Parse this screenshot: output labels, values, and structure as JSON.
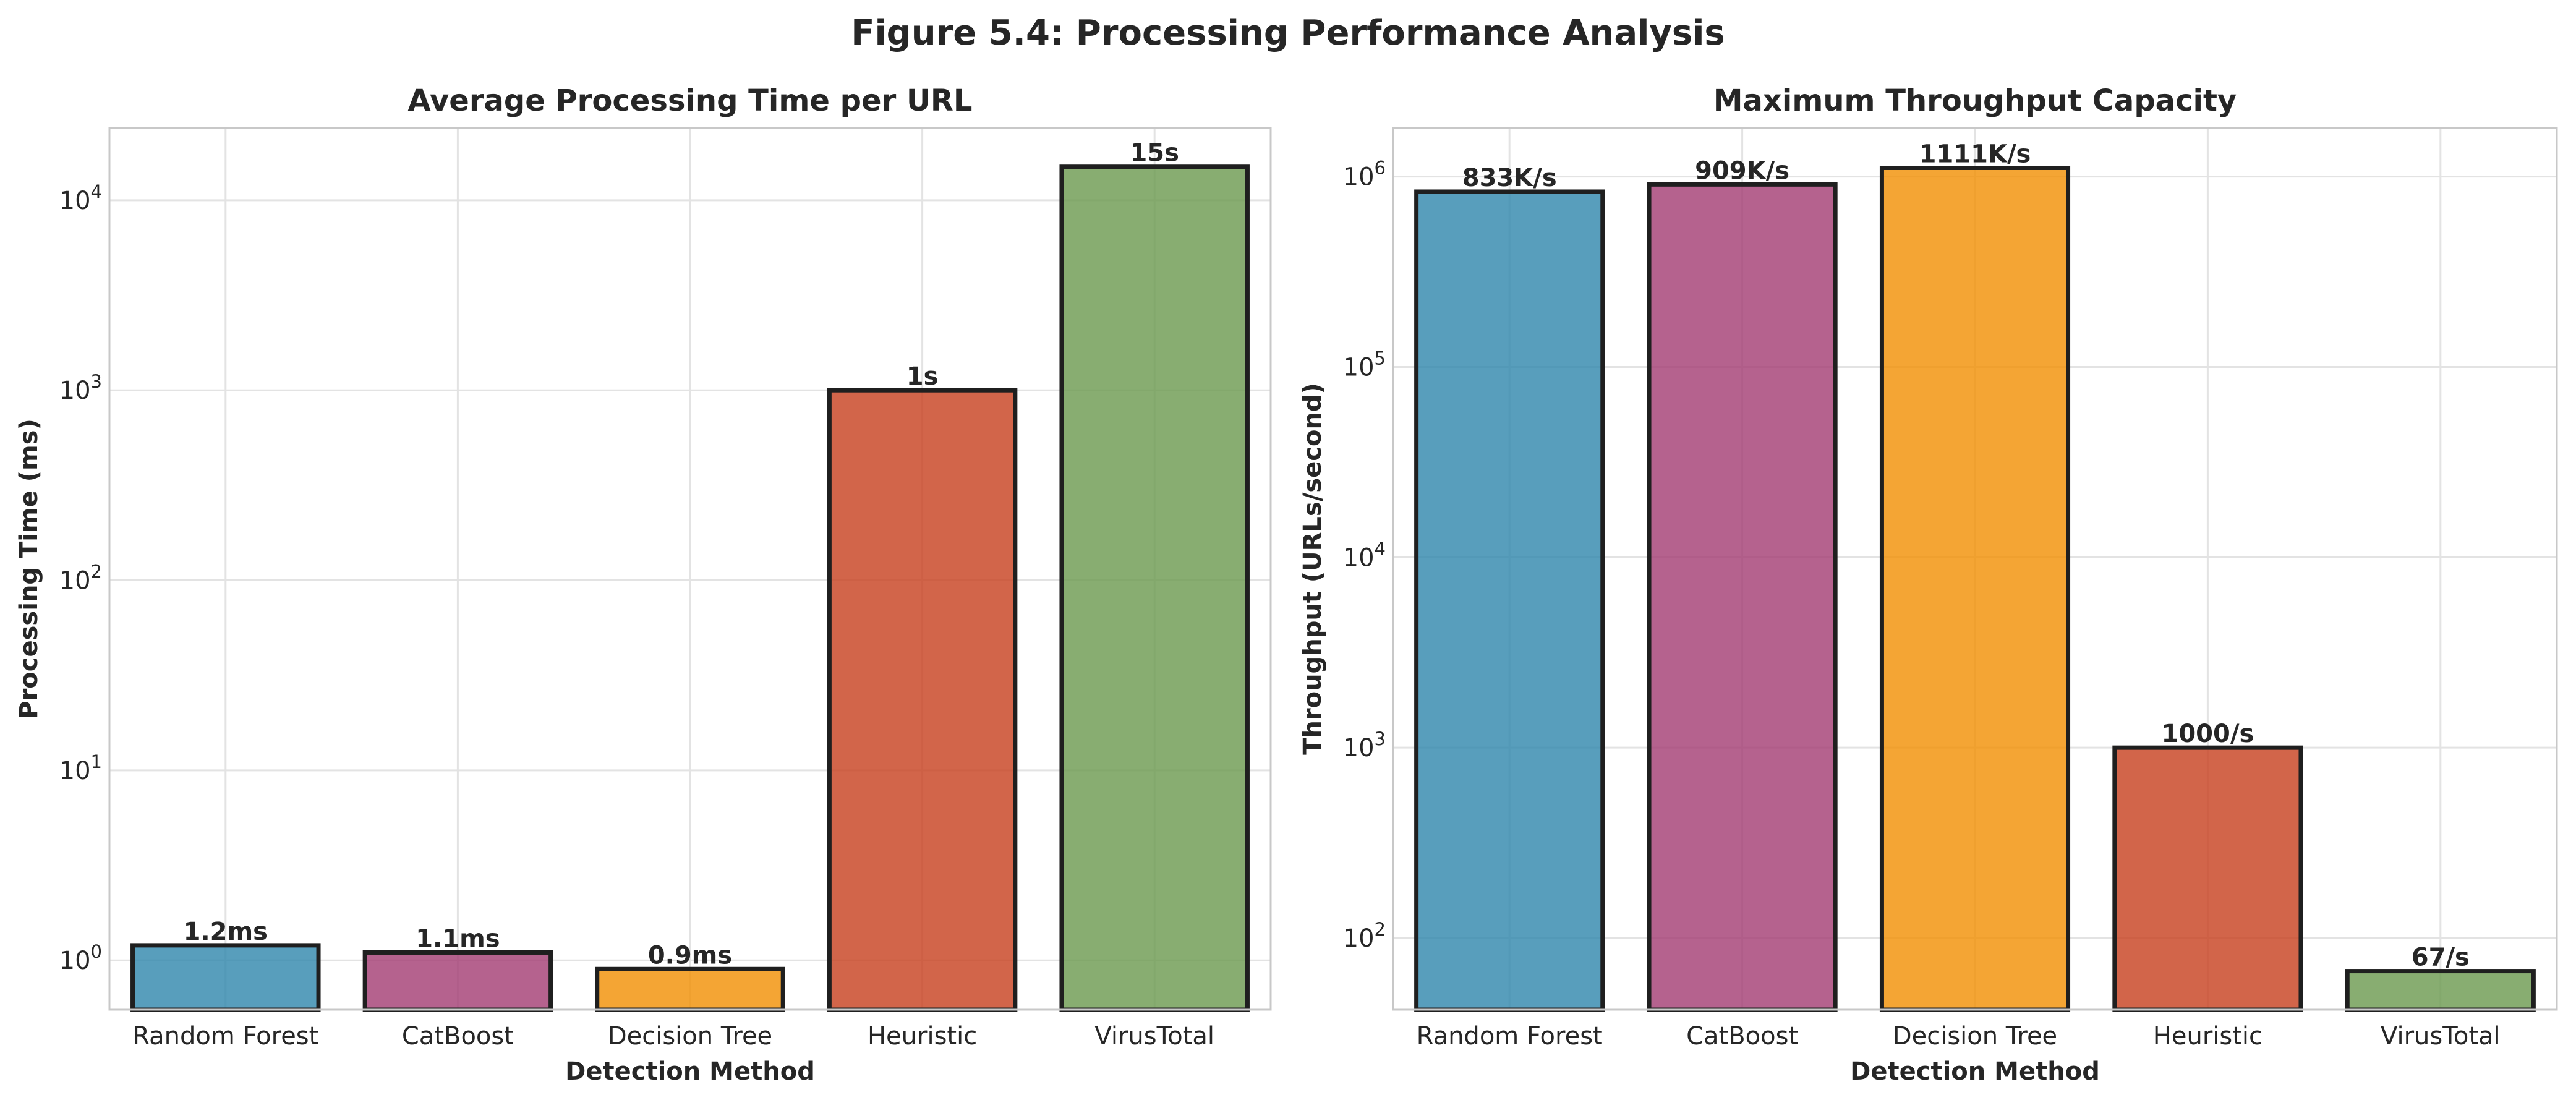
{
  "figure_title": "Figure 5.4: Processing Performance Analysis",
  "chart_data": [
    {
      "type": "bar",
      "title": "Average Processing Time per URL",
      "xlabel": "Detection Method",
      "ylabel": "Processing Time (ms)",
      "yscale": "log",
      "ylim": [
        0.55,
        24000
      ],
      "yticks": [
        1,
        10,
        100,
        1000,
        10000
      ],
      "ytick_labels": [
        {
          "base": "10",
          "exp": "0"
        },
        {
          "base": "10",
          "exp": "1"
        },
        {
          "base": "10",
          "exp": "2"
        },
        {
          "base": "10",
          "exp": "3"
        },
        {
          "base": "10",
          "exp": "4"
        }
      ],
      "grid": true,
      "categories": [
        "Random Forest",
        "CatBoost",
        "Decision Tree",
        "Heuristic",
        "VirusTotal"
      ],
      "values": [
        1.2,
        1.1,
        0.9,
        1000,
        15000
      ],
      "data_labels": [
        "1.2ms",
        "1.1ms",
        "0.9ms",
        "1s",
        "15s"
      ],
      "colors": [
        "#2E86AB",
        "#A23B72",
        "#F18F01",
        "#C73E1D",
        "#6A994E"
      ]
    },
    {
      "type": "bar",
      "title": "Maximum Throughput Capacity",
      "xlabel": "Detection Method",
      "ylabel": "Throughput (URLs/second)",
      "yscale": "log",
      "ylim": [
        42,
        1800000
      ],
      "yticks": [
        100,
        1000,
        10000,
        100000,
        1000000
      ],
      "ytick_labels": [
        {
          "base": "10",
          "exp": "2"
        },
        {
          "base": "10",
          "exp": "3"
        },
        {
          "base": "10",
          "exp": "4"
        },
        {
          "base": "10",
          "exp": "5"
        },
        {
          "base": "10",
          "exp": "6"
        }
      ],
      "grid": true,
      "categories": [
        "Random Forest",
        "CatBoost",
        "Decision Tree",
        "Heuristic",
        "VirusTotal"
      ],
      "values": [
        833333,
        909091,
        1111111,
        1000,
        67
      ],
      "data_labels": [
        "833K/s",
        "909K/s",
        "1111K/s",
        "1000/s",
        "67/s"
      ],
      "colors": [
        "#2E86AB",
        "#A23B72",
        "#F18F01",
        "#C73E1D",
        "#6A994E"
      ]
    }
  ]
}
